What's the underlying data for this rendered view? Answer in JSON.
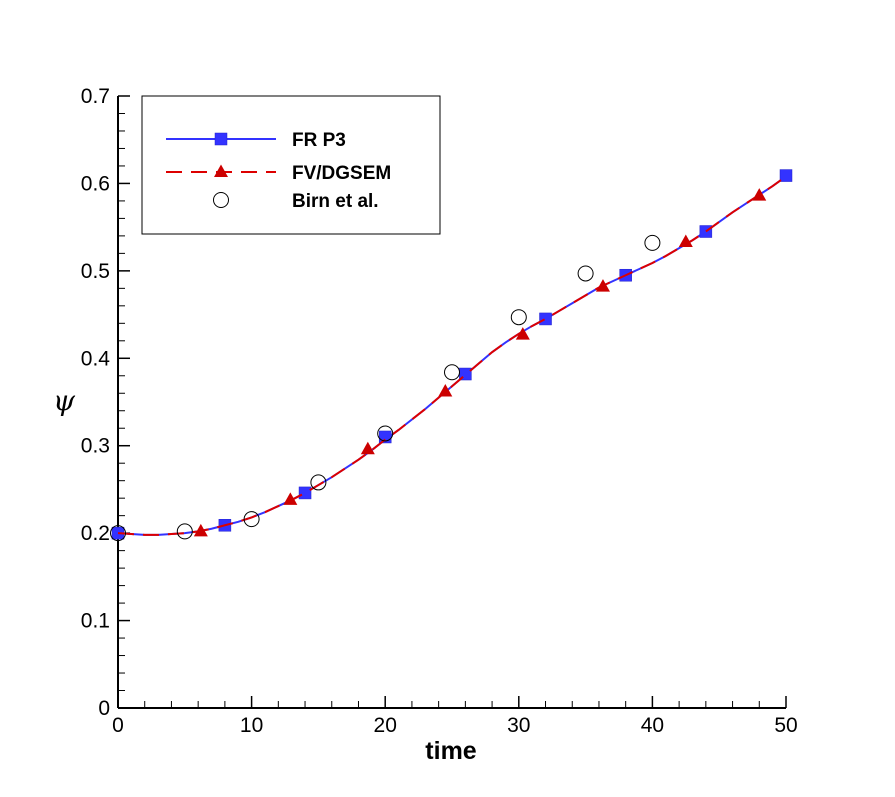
{
  "chart_data": {
    "type": "line",
    "xlabel": "time",
    "ylabel": "ψ",
    "xlim": [
      0,
      50
    ],
    "ylim": [
      0,
      0.7
    ],
    "x_ticks": [
      "0",
      "10",
      "20",
      "30",
      "40",
      "50"
    ],
    "y_ticks": [
      "0",
      "0.1",
      "0.2",
      "0.3",
      "0.4",
      "0.5",
      "0.6",
      "0.7"
    ],
    "x_tick_values": [
      0,
      10,
      20,
      30,
      40,
      50
    ],
    "y_tick_values": [
      0,
      0.1,
      0.2,
      0.3,
      0.4,
      0.5,
      0.6,
      0.7
    ],
    "grid": false,
    "legend_position": "top-left",
    "series": [
      {
        "name": "FR P3",
        "color": "#3333ff",
        "line_style": "solid",
        "marker": "square",
        "curve": {
          "x": [
            0,
            1,
            2,
            3,
            4,
            5,
            6,
            7,
            8,
            9,
            10,
            11,
            12,
            13,
            14,
            15,
            16,
            17,
            18,
            19,
            20,
            21,
            22,
            23,
            24,
            25,
            26,
            27,
            28,
            29,
            30,
            31,
            32,
            33,
            34,
            35,
            36,
            37,
            38,
            39,
            40,
            41,
            42,
            43,
            44,
            45,
            46,
            47,
            48,
            49,
            50
          ],
          "y": [
            0.2,
            0.199,
            0.198,
            0.198,
            0.199,
            0.2,
            0.202,
            0.205,
            0.209,
            0.213,
            0.218,
            0.224,
            0.231,
            0.238,
            0.246,
            0.255,
            0.264,
            0.274,
            0.284,
            0.295,
            0.307,
            0.318,
            0.33,
            0.342,
            0.355,
            0.368,
            0.381,
            0.394,
            0.407,
            0.418,
            0.428,
            0.437,
            0.445,
            0.454,
            0.463,
            0.472,
            0.481,
            0.488,
            0.495,
            0.502,
            0.509,
            0.517,
            0.526,
            0.535,
            0.545,
            0.556,
            0.567,
            0.577,
            0.587,
            0.597,
            0.608
          ]
        },
        "markers": {
          "x": [
            0,
            8,
            14,
            20,
            26,
            32,
            38,
            44,
            50
          ],
          "y": [
            0.2,
            0.209,
            0.246,
            0.31,
            0.382,
            0.445,
            0.495,
            0.545,
            0.609
          ]
        }
      },
      {
        "name": "FV/DGSEM",
        "color": "#dd0000",
        "line_style": "dashed",
        "marker": "triangle",
        "curve": {
          "x": [
            0,
            1,
            2,
            3,
            4,
            5,
            6,
            7,
            8,
            9,
            10,
            11,
            12,
            13,
            14,
            15,
            16,
            17,
            18,
            19,
            20,
            21,
            22,
            23,
            24,
            25,
            26,
            27,
            28,
            29,
            30,
            31,
            32,
            33,
            34,
            35,
            36,
            37,
            38,
            39,
            40,
            41,
            42,
            43,
            44,
            45,
            46,
            47,
            48,
            49,
            50
          ],
          "y": [
            0.2,
            0.199,
            0.198,
            0.198,
            0.199,
            0.2,
            0.202,
            0.205,
            0.209,
            0.213,
            0.218,
            0.224,
            0.231,
            0.238,
            0.246,
            0.255,
            0.264,
            0.274,
            0.284,
            0.295,
            0.307,
            0.318,
            0.33,
            0.342,
            0.355,
            0.368,
            0.381,
            0.394,
            0.407,
            0.418,
            0.428,
            0.437,
            0.445,
            0.454,
            0.463,
            0.472,
            0.481,
            0.488,
            0.495,
            0.502,
            0.509,
            0.517,
            0.526,
            0.535,
            0.545,
            0.556,
            0.567,
            0.577,
            0.587,
            0.597,
            0.608
          ]
        },
        "markers": {
          "x": [
            6.2,
            12.9,
            18.7,
            24.5,
            30.3,
            36.3,
            42.5,
            48
          ],
          "y": [
            0.202,
            0.238,
            0.296,
            0.362,
            0.427,
            0.482,
            0.533,
            0.586
          ]
        }
      },
      {
        "name": "Birn et al.",
        "color": "#000000",
        "line_style": "none",
        "marker": "circle",
        "markers": {
          "x": [
            0,
            5,
            10,
            15,
            20,
            25,
            30,
            35,
            40
          ],
          "y": [
            0.2,
            0.202,
            0.216,
            0.258,
            0.314,
            0.384,
            0.447,
            0.497,
            0.532
          ]
        }
      }
    ]
  }
}
